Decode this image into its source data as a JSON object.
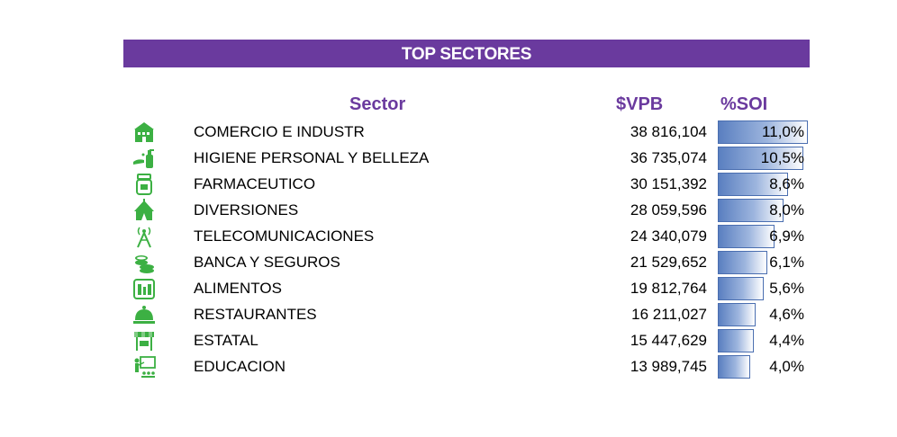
{
  "title": "TOP SECTORES",
  "headers": {
    "sector": "Sector",
    "vpb": "$VPB",
    "soi": "%SOI"
  },
  "colors": {
    "title_bg": "#6a3a9e",
    "header_text": "#6a3a9e",
    "icon": "#3cb043",
    "bar_start": "#5a7fc0",
    "bar_end": "#ffffff"
  },
  "chart_data": {
    "type": "table",
    "title": "TOP SECTORES",
    "columns": [
      "Sector",
      "$VPB",
      "%SOI"
    ],
    "rows": [
      {
        "sector": "COMERCIO E INDUSTR",
        "vpb": "38 816,104",
        "soi": "11,0%",
        "soi_value": 11.0,
        "icon": "shop-icon"
      },
      {
        "sector": "HIGIENE PERSONAL Y BELLEZA",
        "vpb": "36 735,074",
        "soi": "10,5%",
        "soi_value": 10.5,
        "icon": "soap-dispenser-icon"
      },
      {
        "sector": "FARMACEUTICO",
        "vpb": "30 151,392",
        "soi": "8,6%",
        "soi_value": 8.6,
        "icon": "pill-bottle-icon"
      },
      {
        "sector": "DIVERSIONES",
        "vpb": "28 059,596",
        "soi": "8,0%",
        "soi_value": 8.0,
        "icon": "circus-tent-icon"
      },
      {
        "sector": "TELECOMUNICACIONES",
        "vpb": "24 340,079",
        "soi": "6,9%",
        "soi_value": 6.9,
        "icon": "antenna-tower-icon"
      },
      {
        "sector": "BANCA Y SEGUROS",
        "vpb": "21 529,652",
        "soi": "6,1%",
        "soi_value": 6.1,
        "icon": "coins-stack-icon"
      },
      {
        "sector": "ALIMENTOS",
        "vpb": "19 812,764",
        "soi": "5,6%",
        "soi_value": 5.6,
        "icon": "grocery-icon"
      },
      {
        "sector": "RESTAURANTES",
        "vpb": "16 211,027",
        "soi": "4,6%",
        "soi_value": 4.6,
        "icon": "serving-cloche-icon"
      },
      {
        "sector": "ESTATAL",
        "vpb": "15 447,629",
        "soi": "4,4%",
        "soi_value": 4.4,
        "icon": "market-stall-icon"
      },
      {
        "sector": "EDUCACION",
        "vpb": "13 989,745",
        "soi": "4,0%",
        "soi_value": 4.0,
        "icon": "teacher-board-icon"
      }
    ],
    "soi_max": 11.0
  }
}
